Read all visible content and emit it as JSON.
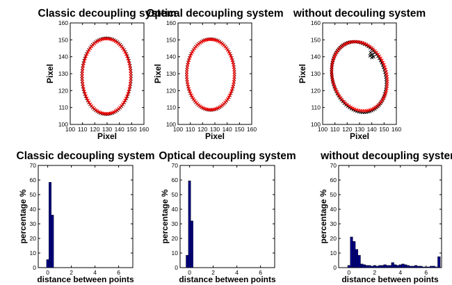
{
  "chart_data": [
    {
      "type": "scatter",
      "title": "Classic decoupling system",
      "xlabel": "Pixel",
      "ylabel": "Pixel",
      "xlim": [
        100,
        160
      ],
      "ylim": [
        100,
        160
      ],
      "xticks": [
        100,
        110,
        120,
        130,
        140,
        150,
        160
      ],
      "yticks": [
        100,
        110,
        120,
        130,
        140,
        150,
        160
      ],
      "grid": false,
      "marker": "x",
      "ellipse_series": [
        {
          "color": "#000000",
          "center": [
            129.5,
            128.5
          ],
          "radius": [
            20,
            22.5
          ],
          "rotation_deg": 0,
          "points": 90
        },
        {
          "color": "#ff0000",
          "center": [
            129.5,
            128.5
          ],
          "radius": [
            19.7,
            22.2
          ],
          "rotation_deg": 0,
          "points": 90
        }
      ]
    },
    {
      "type": "scatter",
      "title": "Optical decoupling system",
      "xlabel": "Pixel",
      "ylabel": "Pixel",
      "xlim": [
        100,
        160
      ],
      "ylim": [
        100,
        160
      ],
      "xticks": [
        100,
        110,
        120,
        130,
        140,
        150,
        160
      ],
      "yticks": [
        100,
        110,
        120,
        130,
        140,
        150,
        160
      ],
      "grid": false,
      "marker": "x",
      "ellipse_series": [
        {
          "color": "#000000",
          "center": [
            126.5,
            129.5
          ],
          "radius": [
            19.5,
            21
          ],
          "rotation_deg": 0,
          "points": 90
        },
        {
          "color": "#ff0000",
          "center": [
            126.5,
            129.5
          ],
          "radius": [
            19.3,
            20.8
          ],
          "rotation_deg": 0,
          "points": 90
        }
      ]
    },
    {
      "type": "scatter",
      "title": "without decouling system",
      "xlabel": "Pixel",
      "ylabel": "Pixel",
      "xlim": [
        100,
        160
      ],
      "ylim": [
        100,
        160
      ],
      "xticks": [
        100,
        110,
        120,
        130,
        140,
        150,
        160
      ],
      "yticks": [
        100,
        110,
        120,
        130,
        140,
        150,
        160
      ],
      "grid": false,
      "marker": "x",
      "ellipse_series": [
        {
          "color": "#000000",
          "center": [
            129.5,
            128
          ],
          "radius": [
            23.5,
            19.5
          ],
          "rotation_deg": -35,
          "points": 90
        },
        {
          "color": "#ff0000",
          "center": [
            130,
            128.5
          ],
          "radius": [
            23.5,
            19.5
          ],
          "rotation_deg": -28,
          "points": 90
        }
      ],
      "extra_points": [
        {
          "color": "#000000",
          "x": 138.5,
          "y": 140.5
        },
        {
          "color": "#000000",
          "x": 139.5,
          "y": 141
        },
        {
          "color": "#000000",
          "x": 139,
          "y": 142.5
        },
        {
          "color": "#000000",
          "x": 140.5,
          "y": 141.5
        },
        {
          "color": "#000000",
          "x": 140,
          "y": 139.5
        },
        {
          "color": "#000000",
          "x": 141.5,
          "y": 140
        }
      ]
    },
    {
      "type": "bar",
      "title": "Classic decoupling system",
      "xlabel": "distance between points",
      "ylabel": "percentage %",
      "xlim": [
        -0.8,
        7.2
      ],
      "ylim": [
        0,
        70
      ],
      "xticks": [
        0,
        2,
        4,
        6
      ],
      "yticks": [
        0,
        10,
        20,
        30,
        40,
        50,
        60,
        70
      ],
      "bar_width": 0.2,
      "bar_color": "#000080",
      "bars": [
        {
          "x": 0.0,
          "value": 5.5
        },
        {
          "x": 0.2,
          "value": 58.5
        },
        {
          "x": 0.4,
          "value": 36
        }
      ]
    },
    {
      "type": "bar",
      "title": "Optical decoupling system",
      "xlabel": "distance between points",
      "ylabel": "percentage %",
      "xlim": [
        -0.8,
        7.2
      ],
      "ylim": [
        0,
        70
      ],
      "xticks": [
        0,
        2,
        4,
        6
      ],
      "yticks": [
        0,
        10,
        20,
        30,
        40,
        50,
        60,
        70
      ],
      "bar_width": 0.2,
      "bar_color": "#000080",
      "bars": [
        {
          "x": -0.2,
          "value": 8.5
        },
        {
          "x": 0.0,
          "value": 59.5
        },
        {
          "x": 0.2,
          "value": 32
        }
      ]
    },
    {
      "type": "bar",
      "title": "without decoupling system",
      "xlabel": "distance between points",
      "ylabel": "percentage %",
      "xlim": [
        -0.8,
        7.2
      ],
      "ylim": [
        0,
        70
      ],
      "xticks": [
        0,
        2,
        4,
        6
      ],
      "yticks": [
        0,
        10,
        20,
        30,
        40,
        50,
        60,
        70
      ],
      "bar_width": 0.2,
      "bar_color": "#000080",
      "bars": [
        {
          "x": 0.0,
          "value": 1.5
        },
        {
          "x": 0.2,
          "value": 21
        },
        {
          "x": 0.4,
          "value": 18
        },
        {
          "x": 0.6,
          "value": 12.5
        },
        {
          "x": 0.8,
          "value": 8.5
        },
        {
          "x": 1.0,
          "value": 2.5
        },
        {
          "x": 1.2,
          "value": 2
        },
        {
          "x": 1.4,
          "value": 1.5
        },
        {
          "x": 1.6,
          "value": 1.5
        },
        {
          "x": 1.8,
          "value": 1
        },
        {
          "x": 2.0,
          "value": 1.5
        },
        {
          "x": 2.2,
          "value": 1
        },
        {
          "x": 2.4,
          "value": 1.5
        },
        {
          "x": 2.6,
          "value": 1.5
        },
        {
          "x": 2.8,
          "value": 2
        },
        {
          "x": 3.0,
          "value": 1.5
        },
        {
          "x": 3.2,
          "value": 1.5
        },
        {
          "x": 3.4,
          "value": 3.5
        },
        {
          "x": 3.6,
          "value": 2
        },
        {
          "x": 3.8,
          "value": 1.5
        },
        {
          "x": 4.0,
          "value": 2
        },
        {
          "x": 4.2,
          "value": 2.5
        },
        {
          "x": 4.4,
          "value": 2
        },
        {
          "x": 4.6,
          "value": 1.5
        },
        {
          "x": 4.8,
          "value": 1
        },
        {
          "x": 5.0,
          "value": 1
        },
        {
          "x": 5.2,
          "value": 1.5
        },
        {
          "x": 5.4,
          "value": 1
        },
        {
          "x": 5.6,
          "value": 1
        },
        {
          "x": 5.8,
          "value": 0.5
        },
        {
          "x": 6.0,
          "value": 0.5
        },
        {
          "x": 6.2,
          "value": 0.5
        },
        {
          "x": 6.4,
          "value": 1
        },
        {
          "x": 6.6,
          "value": 1
        },
        {
          "x": 6.8,
          "value": 0.5
        },
        {
          "x": 7.0,
          "value": 7.5
        }
      ]
    }
  ]
}
